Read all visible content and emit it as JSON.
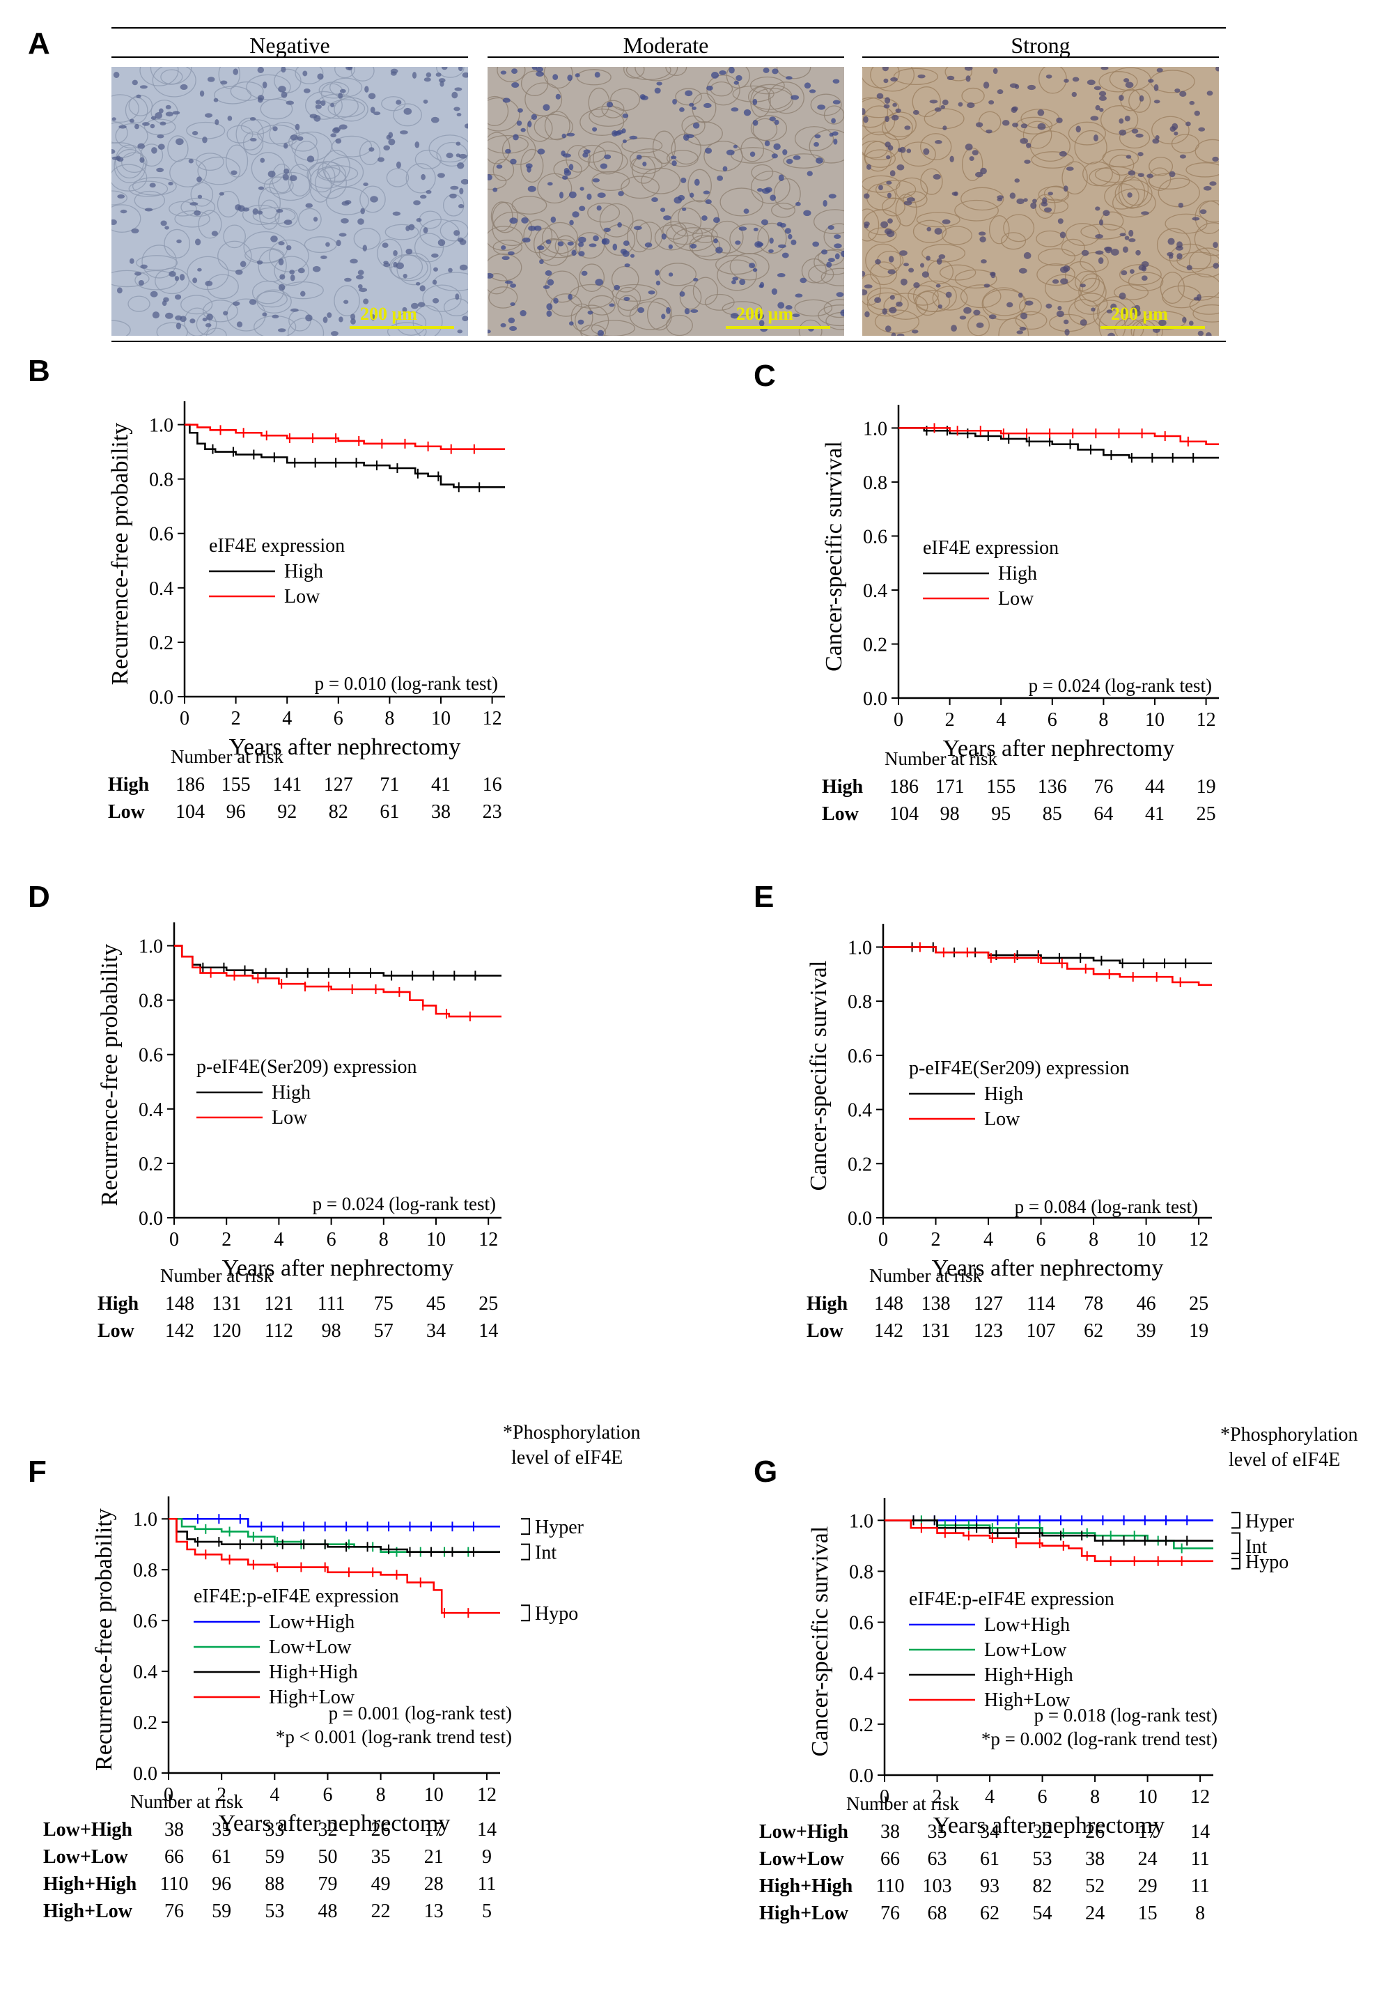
{
  "panel_letters": [
    "A",
    "B",
    "C",
    "D",
    "E",
    "F",
    "G"
  ],
  "panel_a": {
    "headers": [
      "Negative",
      "Moderate",
      "Strong"
    ],
    "scale_bar_label": "200 μm",
    "tissue_colors": [
      "#b6c0d2",
      "#b7aea6",
      "#c0ab92"
    ]
  },
  "common": {
    "xlabel": "Years  after nephrectomy",
    "risk_title": "Number at risk",
    "xticks": [
      "0",
      "2",
      "4",
      "6",
      "8",
      "10",
      "12"
    ],
    "yticks": [
      "0.0",
      "0.2",
      "0.4",
      "0.6",
      "0.8",
      "1.0"
    ]
  },
  "phospho_annotation": {
    "title_line1": "*Phosphorylation",
    "title_line2": "level of eIF4E",
    "levels": [
      "Hyper",
      "Int",
      "Hypo"
    ]
  },
  "colors": {
    "High": "#000000",
    "Low": "#ff0000",
    "Low+High": "#0000ff",
    "Low+Low": "#00a651",
    "High+High": "#000000",
    "High+Low": "#ff0000"
  },
  "chart_data": [
    {
      "panel": "B",
      "type": "line",
      "ylabel": "Recurrence-free  probability",
      "legend_title": "eIF4E expression",
      "pvalue_lines": [
        "p = 0.010 (log-rank test)"
      ],
      "xlim": [
        0,
        12.5
      ],
      "ylim": [
        0,
        1.05
      ],
      "series": [
        {
          "name": "High",
          "x": [
            0,
            0.2,
            0.5,
            0.8,
            1.2,
            2,
            3,
            4,
            5,
            6,
            7,
            8,
            9,
            9.5,
            10,
            10.5,
            11,
            12.5
          ],
          "y": [
            1.0,
            0.97,
            0.93,
            0.91,
            0.9,
            0.89,
            0.88,
            0.86,
            0.86,
            0.86,
            0.85,
            0.84,
            0.82,
            0.81,
            0.78,
            0.77,
            0.77,
            0.77
          ]
        },
        {
          "name": "Low",
          "x": [
            0,
            0.5,
            1,
            2,
            3,
            4,
            5,
            6,
            7,
            8,
            9,
            10,
            11,
            12.5
          ],
          "y": [
            1.0,
            0.99,
            0.98,
            0.97,
            0.96,
            0.95,
            0.95,
            0.94,
            0.93,
            0.93,
            0.92,
            0.91,
            0.91,
            0.91
          ]
        }
      ],
      "risk_table": {
        "labels": [
          "High",
          "Low"
        ],
        "rows": [
          [
            "186",
            "155",
            "141",
            "127",
            "71",
            "41",
            "16"
          ],
          [
            "104",
            "96",
            "92",
            "82",
            "61",
            "38",
            "23"
          ]
        ]
      }
    },
    {
      "panel": "C",
      "type": "line",
      "ylabel": "Cancer-specific  survival",
      "legend_title": "eIF4E expression",
      "pvalue_lines": [
        "p = 0.024 (log-rank test)"
      ],
      "xlim": [
        0,
        12.5
      ],
      "ylim": [
        0,
        1.05
      ],
      "series": [
        {
          "name": "High",
          "x": [
            0,
            1,
            2,
            3,
            4,
            5,
            6,
            7,
            8,
            9,
            10,
            11,
            12.5
          ],
          "y": [
            1.0,
            0.99,
            0.98,
            0.97,
            0.96,
            0.95,
            0.94,
            0.92,
            0.9,
            0.89,
            0.89,
            0.89,
            0.89
          ]
        },
        {
          "name": "Low",
          "x": [
            0,
            2,
            4,
            6,
            8,
            10,
            11,
            12,
            12.5
          ],
          "y": [
            1.0,
            0.99,
            0.98,
            0.98,
            0.98,
            0.97,
            0.95,
            0.94,
            0.94
          ]
        }
      ],
      "risk_table": {
        "labels": [
          "High",
          "Low"
        ],
        "rows": [
          [
            "186",
            "171",
            "155",
            "136",
            "76",
            "44",
            "19"
          ],
          [
            "104",
            "98",
            "95",
            "85",
            "64",
            "41",
            "25"
          ]
        ]
      }
    },
    {
      "panel": "D",
      "type": "line",
      "ylabel": "Recurrence-free  probability",
      "legend_title": "p-eIF4E(Ser209) expression",
      "pvalue_lines": [
        "p = 0.024 (log-rank test)"
      ],
      "xlim": [
        0,
        12.5
      ],
      "ylim": [
        0,
        1.05
      ],
      "series": [
        {
          "name": "High",
          "x": [
            0,
            0.3,
            0.7,
            1,
            2,
            3,
            4,
            6,
            8,
            9,
            10,
            12.5
          ],
          "y": [
            1.0,
            0.96,
            0.93,
            0.92,
            0.91,
            0.9,
            0.9,
            0.9,
            0.89,
            0.89,
            0.89,
            0.89
          ]
        },
        {
          "name": "Low",
          "x": [
            0,
            0.3,
            0.7,
            1,
            2,
            3,
            4,
            5,
            6,
            7,
            8,
            9,
            9.5,
            10,
            10.5,
            12.5
          ],
          "y": [
            1.0,
            0.96,
            0.92,
            0.9,
            0.89,
            0.88,
            0.86,
            0.85,
            0.84,
            0.84,
            0.83,
            0.8,
            0.78,
            0.75,
            0.74,
            0.74
          ]
        }
      ],
      "risk_table": {
        "labels": [
          "High",
          "Low"
        ],
        "rows": [
          [
            "148",
            "131",
            "121",
            "111",
            "75",
            "45",
            "25"
          ],
          [
            "142",
            "120",
            "112",
            "98",
            "57",
            "34",
            "14"
          ]
        ]
      }
    },
    {
      "panel": "E",
      "type": "line",
      "ylabel": "Cancer-specific  survival",
      "legend_title": "p-eIF4E(Ser209) expression",
      "pvalue_lines": [
        "p = 0.084 (log-rank test)"
      ],
      "xlim": [
        0,
        12.5
      ],
      "ylim": [
        0,
        1.05
      ],
      "series": [
        {
          "name": "High",
          "x": [
            0,
            2,
            4,
            6,
            8,
            9,
            10,
            12.5
          ],
          "y": [
            1.0,
            0.98,
            0.97,
            0.96,
            0.95,
            0.94,
            0.94,
            0.94
          ]
        },
        {
          "name": "Low",
          "x": [
            0,
            2,
            4,
            6,
            7,
            8,
            9,
            10,
            11,
            12,
            12.5
          ],
          "y": [
            1.0,
            0.98,
            0.96,
            0.94,
            0.92,
            0.9,
            0.89,
            0.89,
            0.87,
            0.86,
            0.86
          ]
        }
      ],
      "risk_table": {
        "labels": [
          "High",
          "Low"
        ],
        "rows": [
          [
            "148",
            "138",
            "127",
            "114",
            "78",
            "46",
            "25"
          ],
          [
            "142",
            "131",
            "123",
            "107",
            "62",
            "39",
            "19"
          ]
        ]
      }
    },
    {
      "panel": "F",
      "type": "line",
      "ylabel": "Recurrence-free  probability",
      "legend_title": "eIF4E:p-eIF4E expression",
      "pvalue_lines": [
        "p = 0.001 (log-rank test)",
        "*p < 0.001 (log-rank trend test)"
      ],
      "xlim": [
        0,
        12.5
      ],
      "ylim": [
        0,
        1.05
      ],
      "series": [
        {
          "name": "Low+High",
          "x": [
            0,
            2.5,
            3,
            12.5
          ],
          "y": [
            1.0,
            1.0,
            0.97,
            0.97
          ]
        },
        {
          "name": "Low+Low",
          "x": [
            0,
            0.5,
            1,
            2,
            3,
            4,
            5,
            6,
            7,
            8,
            9,
            10,
            12.5
          ],
          "y": [
            1.0,
            0.97,
            0.96,
            0.95,
            0.93,
            0.91,
            0.9,
            0.9,
            0.89,
            0.87,
            0.87,
            0.87,
            0.87
          ]
        },
        {
          "name": "High+High",
          "x": [
            0,
            0.3,
            0.7,
            1,
            2,
            4,
            6,
            8,
            9,
            10,
            12.5
          ],
          "y": [
            1.0,
            0.95,
            0.92,
            0.91,
            0.9,
            0.9,
            0.89,
            0.88,
            0.87,
            0.87,
            0.87
          ]
        },
        {
          "name": "High+Low",
          "x": [
            0,
            0.3,
            0.7,
            1,
            2,
            3,
            4,
            5,
            6,
            7,
            8,
            9,
            9.5,
            10,
            10.3,
            12.5
          ],
          "y": [
            1.0,
            0.91,
            0.88,
            0.86,
            0.84,
            0.82,
            0.81,
            0.81,
            0.79,
            0.79,
            0.78,
            0.75,
            0.75,
            0.72,
            0.63,
            0.63
          ]
        }
      ],
      "risk_table": {
        "labels": [
          "Low+High",
          "Low+Low",
          "High+High",
          "High+Low"
        ],
        "rows": [
          [
            "38",
            "35",
            "33",
            "32",
            "26",
            "17",
            "14"
          ],
          [
            "66",
            "61",
            "59",
            "50",
            "35",
            "21",
            "9"
          ],
          [
            "110",
            "96",
            "88",
            "79",
            "49",
            "28",
            "11"
          ],
          [
            "76",
            "59",
            "53",
            "48",
            "22",
            "13",
            "5"
          ]
        ]
      }
    },
    {
      "panel": "G",
      "type": "line",
      "ylabel": "Cancer-specific  survival",
      "legend_title": "eIF4E:p-eIF4E expression",
      "pvalue_lines": [
        "p = 0.018 (log-rank test)",
        "*p = 0.002 (log-rank trend test)"
      ],
      "xlim": [
        0,
        12.5
      ],
      "ylim": [
        0,
        1.05
      ],
      "series": [
        {
          "name": "Low+High",
          "x": [
            0,
            12.5
          ],
          "y": [
            1.0,
            1.0
          ]
        },
        {
          "name": "Low+Low",
          "x": [
            0,
            2,
            4,
            6,
            8,
            10,
            11,
            12.5
          ],
          "y": [
            1.0,
            0.98,
            0.97,
            0.95,
            0.94,
            0.92,
            0.89,
            0.89
          ]
        },
        {
          "name": "High+High",
          "x": [
            0,
            2,
            4,
            6,
            8,
            10,
            12.5
          ],
          "y": [
            1.0,
            0.97,
            0.95,
            0.94,
            0.92,
            0.92,
            0.92
          ]
        },
        {
          "name": "High+Low",
          "x": [
            0,
            1,
            2,
            3,
            4,
            5,
            6,
            7,
            7.5,
            8,
            12.5
          ],
          "y": [
            1.0,
            0.97,
            0.95,
            0.94,
            0.93,
            0.91,
            0.9,
            0.89,
            0.86,
            0.84,
            0.84
          ]
        }
      ],
      "risk_table": {
        "labels": [
          "Low+High",
          "Low+Low",
          "High+High",
          "High+Low"
        ],
        "rows": [
          [
            "38",
            "35",
            "34",
            "32",
            "26",
            "17",
            "14"
          ],
          [
            "66",
            "63",
            "61",
            "53",
            "38",
            "24",
            "11"
          ],
          [
            "110",
            "103",
            "93",
            "82",
            "52",
            "29",
            "11"
          ],
          [
            "76",
            "68",
            "62",
            "54",
            "24",
            "15",
            "8"
          ]
        ]
      }
    }
  ]
}
